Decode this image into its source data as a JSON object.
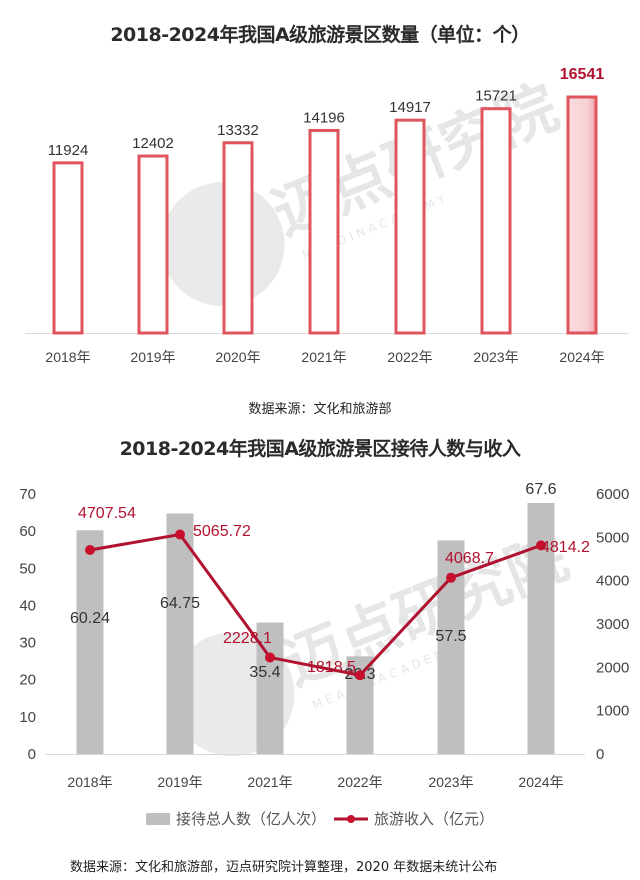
{
  "chart_data": [
    {
      "type": "bar",
      "title": "2018-2024年我国A级旅游景区数量（单位：个）",
      "categories": [
        "2018年",
        "2019年",
        "2020年",
        "2021年",
        "2022年",
        "2023年",
        "2024年"
      ],
      "values": [
        11924,
        12402,
        13332,
        14196,
        14917,
        15721,
        16541
      ],
      "value_labels": [
        "11924",
        "12402",
        "13332",
        "14196",
        "14917",
        "15721",
        "16541"
      ],
      "highlight_index": 6,
      "xlabel": "",
      "ylabel": "",
      "grid": false,
      "source": "数据来源：文化和旅游部",
      "colors": {
        "bar_stroke": "#e0545e",
        "highlight_fill": "#f6d0d4",
        "highlight_label": "#b0122f"
      }
    },
    {
      "type": "bar+line",
      "title": "2018-2024年我国A级旅游景区接待人数与收入",
      "categories": [
        "2018年",
        "2019年",
        "2021年",
        "2022年",
        "2023年",
        "2024年"
      ],
      "series": [
        {
          "name": "接待总人数（亿人次）",
          "type": "bar",
          "axis": "left",
          "values": [
            60.24,
            64.75,
            35.4,
            26.3,
            57.5,
            67.6
          ],
          "labels": [
            "60.24",
            "64.75",
            "35.4",
            "26.3",
            "57.5",
            "67.6"
          ],
          "color": "#bfbfbf"
        },
        {
          "name": "旅游收入（亿元）",
          "type": "line",
          "axis": "right",
          "values": [
            4707.54,
            5065.72,
            2228.1,
            1818.5,
            4068.7,
            4814.2
          ],
          "labels": [
            "4707.54",
            "5065.72",
            "2228.1",
            "1818.5",
            "4068.7",
            "4814.2"
          ],
          "color": "#b0122f"
        }
      ],
      "y_left": {
        "range": [
          0,
          70
        ],
        "ticks": [
          "0",
          "10",
          "20",
          "30",
          "40",
          "50",
          "60",
          "70"
        ]
      },
      "y_right": {
        "range": [
          0,
          6000
        ],
        "ticks": [
          "0",
          "1000",
          "2000",
          "3000",
          "4000",
          "5000",
          "6000"
        ]
      },
      "legend_position": "bottom",
      "grid": false,
      "source": "数据来源：文化和旅游部，迈点研究院计算整理，2020 年数据未统计公布"
    }
  ],
  "watermark": {
    "cn": "迈点研究院",
    "en": "M E A D I N   A C A D E M Y"
  },
  "chart1": {
    "title": "2018-2024年我国A级旅游景区数量（单位：个）",
    "source": "数据来源：文化和旅游部"
  },
  "chart2": {
    "title": "2018-2024年我国A级旅游景区接待人数与收入",
    "legend_bar": "接待总人数（亿人次）",
    "legend_line": "旅游收入（亿元）",
    "source": "数据来源：文化和旅游部，迈点研究院计算整理，2020 年数据未统计公布"
  }
}
